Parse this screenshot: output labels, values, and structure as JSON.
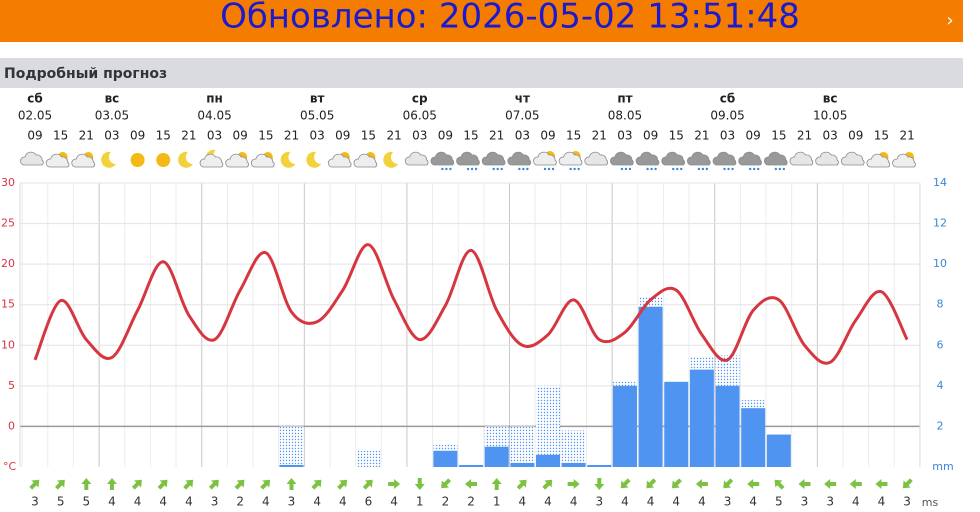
{
  "header": {
    "updated": "Обновлено: 2026-05-02 13:51:48"
  },
  "section_title": "Подробный прогноз",
  "chart_data": {
    "type": "weather",
    "days": [
      {
        "name": "сб",
        "date": "02.05"
      },
      {
        "name": "вс",
        "date": "03.05"
      },
      {
        "name": "пн",
        "date": "04.05"
      },
      {
        "name": "вт",
        "date": "05.05"
      },
      {
        "name": "ср",
        "date": "06.05"
      },
      {
        "name": "чт",
        "date": "07.05"
      },
      {
        "name": "пт",
        "date": "08.05"
      },
      {
        "name": "сб",
        "date": "09.05"
      },
      {
        "name": "вс",
        "date": "10.05"
      }
    ],
    "categories": [
      "09",
      "15",
      "21",
      "03",
      "09",
      "15",
      "21",
      "03",
      "09",
      "15",
      "21",
      "03",
      "09",
      "15",
      "21",
      "03",
      "09",
      "15",
      "21",
      "03",
      "09",
      "15",
      "21",
      "03",
      "09",
      "15",
      "21",
      "03",
      "09",
      "15",
      "21",
      "03",
      "09",
      "15",
      "21"
    ],
    "ylim": [
      -5,
      30
    ],
    "yticks": [
      0,
      5,
      10,
      15,
      20,
      25,
      30
    ],
    "y_unit": "°C",
    "y2lim": [
      0,
      14
    ],
    "y2ticks": [
      2,
      4,
      6,
      8,
      10,
      12,
      14
    ],
    "y2_unit": "mm",
    "series": [
      {
        "type": "line",
        "color": "#d6363f",
        "values": [
          8.2,
          15.5,
          10.7,
          8.5,
          14.3,
          20.3,
          13.7,
          10.7,
          16.8,
          21.4,
          14.1,
          12.9,
          16.8,
          22.4,
          15.6,
          10.7,
          14.9,
          21.7,
          14.3,
          10.0,
          11.3,
          15.6,
          10.7,
          11.6,
          15.6,
          16.8,
          11.3,
          8.2,
          14.3,
          15.6,
          10.0,
          7.9,
          13.1,
          16.6,
          10.7
        ]
      },
      {
        "type": "dotted-bar",
        "axis": "y2",
        "color": "#4f94f0",
        "values": [
          null,
          null,
          null,
          null,
          null,
          null,
          null,
          null,
          null,
          null,
          2.0,
          null,
          null,
          0.8,
          null,
          null,
          1.1,
          null,
          2.0,
          2.0,
          4.0,
          1.8,
          null,
          4.2,
          8.4,
          null,
          5.4,
          5.5,
          3.3,
          null,
          null,
          null,
          null,
          null,
          null
        ]
      },
      {
        "type": "bar",
        "axis": "y2",
        "color": "#4f94f0",
        "values": [
          null,
          null,
          null,
          null,
          null,
          null,
          null,
          null,
          null,
          null,
          0.1,
          null,
          null,
          null,
          null,
          null,
          0.8,
          0.1,
          1.0,
          0.2,
          0.6,
          0.2,
          0.1,
          4.0,
          7.9,
          4.2,
          4.8,
          4.0,
          2.9,
          1.6,
          null,
          null,
          null,
          null,
          null
        ]
      }
    ],
    "wind": {
      "color": "#7cc242",
      "unit": "ms",
      "direction": [
        45,
        45,
        0,
        0,
        45,
        45,
        45,
        45,
        45,
        45,
        0,
        45,
        45,
        45,
        90,
        180,
        225,
        270,
        0,
        45,
        45,
        90,
        180,
        225,
        225,
        225,
        270,
        225,
        270,
        315,
        270,
        270,
        270,
        270,
        225
      ],
      "speed": [
        3,
        5,
        5,
        4,
        4,
        4,
        4,
        3,
        2,
        4,
        3,
        4,
        4,
        6,
        4,
        1,
        2,
        2,
        1,
        4,
        4,
        4,
        3,
        4,
        4,
        4,
        4,
        3,
        4,
        5,
        3,
        3,
        4,
        4,
        3
      ]
    }
  }
}
